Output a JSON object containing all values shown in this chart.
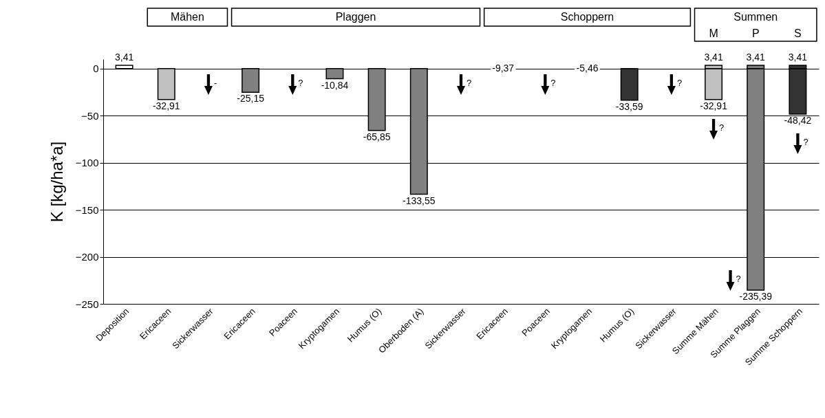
{
  "chart_data": {
    "type": "bar",
    "stacked": true,
    "ylabel": "K [kg/ha*a]",
    "categories": [
      "Deposition",
      "Ericaceen",
      "Sickerwasser",
      "Ericaceen",
      "Poaceen",
      "Kryptogamen",
      "Humus (O)",
      "Oberboden (A)",
      "Sickerwasser",
      "Ericaceen",
      "Poaceen",
      "Kryptogamen",
      "Humus (O)",
      "Sickerwasser",
      "Summe Mähen",
      "Summe Plaggen",
      "Summe Schoppern"
    ],
    "series": [
      {
        "values": [
          3.41,
          -32.91,
          null,
          -25.15,
          null,
          -10.84,
          -65.85,
          -133.55,
          null,
          null,
          null,
          null,
          -33.59,
          null,
          -32.91,
          -235.39,
          -48.42
        ],
        "colors": [
          "#ffffff",
          "#c0c0c0",
          "#c0c0c0",
          "#808080",
          "#808080",
          "#808080",
          "#808080",
          "#808080",
          "#808080",
          "#333333",
          "#333333",
          "#333333",
          "#333333",
          "#333333",
          "#c0c0c0",
          "#808080",
          "#333333"
        ],
        "value_labels": [
          "3,41",
          "-32,91",
          null,
          "-25,15",
          null,
          "-10,84",
          "-65,85",
          "-133,55",
          null,
          null,
          null,
          null,
          "-33,59",
          null,
          "-32,91",
          "-235,39",
          "-48,42"
        ]
      },
      {
        "values": [
          null,
          null,
          null,
          null,
          null,
          null,
          null,
          null,
          null,
          null,
          null,
          null,
          null,
          null,
          3.41,
          3.41,
          3.41
        ],
        "colors": [
          "#ffffff",
          "#c0c0c0",
          "#c0c0c0",
          "#808080",
          "#808080",
          "#808080",
          "#808080",
          "#808080",
          "#808080",
          "#333333",
          "#333333",
          "#333333",
          "#333333",
          "#333333",
          "#c0c0c0",
          "#808080",
          "#333333"
        ],
        "value_labels": [
          null,
          null,
          null,
          null,
          null,
          null,
          null,
          null,
          null,
          null,
          null,
          null,
          null,
          null,
          "3,41",
          "3,41",
          "3,41"
        ]
      }
    ],
    "ylim": [
      -250,
      10
    ],
    "yticks": [
      -250,
      -200,
      -150,
      -100,
      -50,
      0
    ],
    "grid": "y",
    "annotations": [
      "Mähen",
      "Plaggen",
      "Schoppern",
      "Summen",
      "M",
      "P",
      "S",
      "-",
      "?",
      "?",
      "-9,37",
      "?",
      "-5,46",
      "?",
      "?",
      "?",
      "?"
    ]
  }
}
